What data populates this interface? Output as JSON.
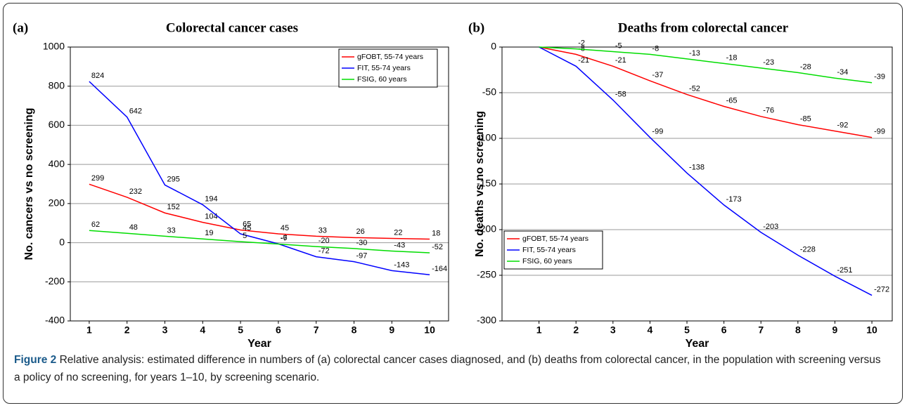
{
  "chart_data": [
    {
      "type": "line",
      "panel": "(a)",
      "title": "Colorectal cancer cases",
      "xlabel": "Year",
      "ylabel": "No. cancers vs no screening",
      "x": [
        1,
        2,
        3,
        4,
        5,
        6,
        7,
        8,
        9,
        10
      ],
      "xlim": [
        0.5,
        10.5
      ],
      "xticks": [
        1,
        2,
        3,
        4,
        5,
        6,
        7,
        8,
        9,
        10
      ],
      "ylim": [
        -400,
        1000
      ],
      "yticks": [
        -400,
        -200,
        0,
        200,
        400,
        600,
        800,
        1000
      ],
      "grid": true,
      "legend": "upper right",
      "series": [
        {
          "name": "gFOBT, 55-74 years",
          "color": "#ff0000",
          "values": [
            299,
            232,
            152,
            104,
            65,
            45,
            33,
            26,
            22,
            18
          ]
        },
        {
          "name": "FIT, 55-74 years",
          "color": "#0000ff",
          "values": [
            824,
            642,
            295,
            194,
            45,
            -6,
            -72,
            -97,
            -143,
            -164
          ]
        },
        {
          "name": "FSIG, 60 years",
          "color": "#00dd00",
          "values": [
            62,
            48,
            33,
            19,
            5,
            -7,
            -20,
            -30,
            -43,
            -52
          ]
        }
      ]
    },
    {
      "type": "line",
      "panel": "(b)",
      "title": "Deaths from colorectal cancer",
      "xlabel": "Year",
      "ylabel": "No. deaths vs no screening",
      "x": [
        1,
        2,
        3,
        4,
        5,
        6,
        7,
        8,
        9,
        10
      ],
      "xlim": [
        0,
        10.55
      ],
      "xticks": [
        1,
        2,
        3,
        4,
        5,
        6,
        7,
        8,
        9,
        10
      ],
      "ylim": [
        -300,
        0
      ],
      "yticks": [
        -300,
        -250,
        -200,
        -150,
        -100,
        -50,
        0
      ],
      "grid": true,
      "legend": "lower left",
      "series": [
        {
          "name": "gFOBT, 55-74 years",
          "color": "#ff0000",
          "values": [
            0,
            -8,
            -21,
            -37,
            -52,
            -65,
            -76,
            -85,
            -92,
            -99
          ],
          "value_labels": [
            null,
            "-8",
            "-21",
            "-37",
            "-52",
            "-65",
            "-76",
            "-85",
            "-92",
            "-99"
          ]
        },
        {
          "name": "FIT, 55-74 years",
          "color": "#0000ff",
          "values": [
            0,
            -21,
            -58,
            -99,
            -138,
            -173,
            -203,
            -228,
            -251,
            -272
          ],
          "value_labels": [
            null,
            "-21",
            "-58",
            "-99",
            "-138",
            "-173",
            "-203",
            "-228",
            "-251",
            "-272"
          ]
        },
        {
          "name": "FSIG, 60 years",
          "color": "#00dd00",
          "values": [
            0,
            -2,
            -5,
            -8,
            -13,
            -18,
            -23,
            -28,
            -34,
            -39
          ],
          "value_labels": [
            null,
            "-2",
            "-5",
            "-8",
            "-13",
            "-18",
            "-23",
            "-28",
            "-34",
            "-39"
          ]
        }
      ]
    }
  ],
  "caption": {
    "label": "Figure 2",
    "text": "Relative analysis: estimated difference in numbers of (a) colorectal cancer cases diagnosed, and (b) deaths from colorectal cancer, in the population with screening versus a policy of no screening, for years 1–10, by screening scenario."
  }
}
